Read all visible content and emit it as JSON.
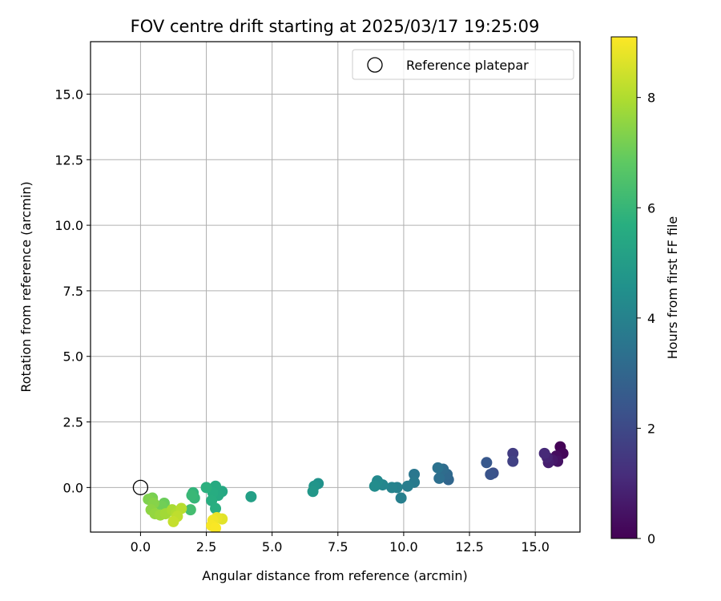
{
  "chart_data": {
    "type": "scatter",
    "title": "FOV centre drift starting at 2025/03/17 19:25:09",
    "xlabel": "Angular distance from reference (arcmin)",
    "ylabel": "Rotation from reference (arcmin)",
    "xlim": [
      -1.9,
      16.7
    ],
    "ylim": [
      -1.7,
      17.0
    ],
    "xticks": [
      "0.0",
      "2.5",
      "5.0",
      "7.5",
      "10.0",
      "12.5",
      "15.0"
    ],
    "yticks": [
      "0.0",
      "2.5",
      "5.0",
      "7.5",
      "10.0",
      "12.5",
      "15.0"
    ],
    "grid": true,
    "legend": {
      "placement": "top-right",
      "entries": [
        "Reference platepar"
      ]
    },
    "reference_point": {
      "x": 0.0,
      "y": 0.0
    },
    "colorbar": {
      "label": "Hours from first FF file",
      "range": [
        0,
        9.1
      ],
      "ticks": [
        "0",
        "2",
        "4",
        "6",
        "8"
      ],
      "colormap": "viridis"
    },
    "series": [
      {
        "points": [
          {
            "x": 15.95,
            "y": 1.55,
            "h": 0.05
          },
          {
            "x": 16.05,
            "y": 1.3,
            "h": 0.15
          },
          {
            "x": 15.8,
            "y": 1.2,
            "h": 0.3
          },
          {
            "x": 15.85,
            "y": 1.0,
            "h": 0.45
          },
          {
            "x": 15.65,
            "y": 1.05,
            "h": 0.6
          },
          {
            "x": 15.5,
            "y": 0.95,
            "h": 0.75
          },
          {
            "x": 15.45,
            "y": 1.15,
            "h": 0.9
          },
          {
            "x": 15.35,
            "y": 1.3,
            "h": 1.05
          },
          {
            "x": 14.15,
            "y": 1.3,
            "h": 1.6
          },
          {
            "x": 14.15,
            "y": 1.0,
            "h": 1.75
          },
          {
            "x": 13.4,
            "y": 0.55,
            "h": 2.2
          },
          {
            "x": 13.3,
            "y": 0.5,
            "h": 2.35
          },
          {
            "x": 13.15,
            "y": 0.95,
            "h": 2.5
          },
          {
            "x": 11.7,
            "y": 0.3,
            "h": 3.0
          },
          {
            "x": 11.65,
            "y": 0.5,
            "h": 3.1
          },
          {
            "x": 11.5,
            "y": 0.7,
            "h": 3.2
          },
          {
            "x": 11.35,
            "y": 0.35,
            "h": 3.3
          },
          {
            "x": 11.3,
            "y": 0.75,
            "h": 3.4
          },
          {
            "x": 10.4,
            "y": 0.5,
            "h": 3.6
          },
          {
            "x": 10.4,
            "y": 0.2,
            "h": 3.7
          },
          {
            "x": 10.15,
            "y": 0.05,
            "h": 3.8
          },
          {
            "x": 9.9,
            "y": -0.4,
            "h": 3.9
          },
          {
            "x": 9.75,
            "y": 0.0,
            "h": 3.95
          },
          {
            "x": 9.55,
            "y": 0.0,
            "h": 4.05
          },
          {
            "x": 9.2,
            "y": 0.1,
            "h": 4.15
          },
          {
            "x": 9.0,
            "y": 0.25,
            "h": 4.25
          },
          {
            "x": 8.9,
            "y": 0.05,
            "h": 4.35
          },
          {
            "x": 6.75,
            "y": 0.15,
            "h": 4.6
          },
          {
            "x": 6.6,
            "y": 0.05,
            "h": 4.7
          },
          {
            "x": 6.55,
            "y": -0.15,
            "h": 4.8
          },
          {
            "x": 4.2,
            "y": -0.35,
            "h": 5.1
          },
          {
            "x": 3.1,
            "y": -0.15,
            "h": 5.4
          },
          {
            "x": 2.95,
            "y": -0.3,
            "h": 5.5
          },
          {
            "x": 2.85,
            "y": 0.05,
            "h": 5.55
          },
          {
            "x": 2.75,
            "y": -0.2,
            "h": 5.6
          },
          {
            "x": 2.7,
            "y": -0.5,
            "h": 5.65
          },
          {
            "x": 2.85,
            "y": -0.8,
            "h": 5.7
          },
          {
            "x": 2.5,
            "y": 0.0,
            "h": 5.75
          },
          {
            "x": 2.0,
            "y": -0.2,
            "h": 5.9
          },
          {
            "x": 2.05,
            "y": -0.4,
            "h": 6.0
          },
          {
            "x": 1.95,
            "y": -0.3,
            "h": 6.05
          },
          {
            "x": 1.9,
            "y": -0.85,
            "h": 6.3
          },
          {
            "x": 0.9,
            "y": -0.6,
            "h": 7.0
          },
          {
            "x": 0.8,
            "y": -0.7,
            "h": 7.1
          },
          {
            "x": 0.45,
            "y": -0.4,
            "h": 7.2
          },
          {
            "x": 0.3,
            "y": -0.45,
            "h": 7.3
          },
          {
            "x": 0.5,
            "y": -0.6,
            "h": 7.4
          },
          {
            "x": 0.4,
            "y": -0.85,
            "h": 7.5
          },
          {
            "x": 0.55,
            "y": -1.0,
            "h": 7.6
          },
          {
            "x": 0.75,
            "y": -1.05,
            "h": 7.7
          },
          {
            "x": 0.95,
            "y": -1.0,
            "h": 7.8
          },
          {
            "x": 1.2,
            "y": -0.85,
            "h": 7.9
          },
          {
            "x": 1.35,
            "y": -1.0,
            "h": 8.0
          },
          {
            "x": 1.55,
            "y": -0.8,
            "h": 8.1
          },
          {
            "x": 1.4,
            "y": -1.1,
            "h": 8.2
          },
          {
            "x": 1.25,
            "y": -1.3,
            "h": 8.3
          },
          {
            "x": 3.1,
            "y": -1.2,
            "h": 8.7
          },
          {
            "x": 2.9,
            "y": -1.15,
            "h": 8.8
          },
          {
            "x": 2.75,
            "y": -1.25,
            "h": 8.9
          },
          {
            "x": 2.7,
            "y": -1.45,
            "h": 9.0
          },
          {
            "x": 2.85,
            "y": -1.55,
            "h": 9.05
          }
        ]
      }
    ]
  }
}
